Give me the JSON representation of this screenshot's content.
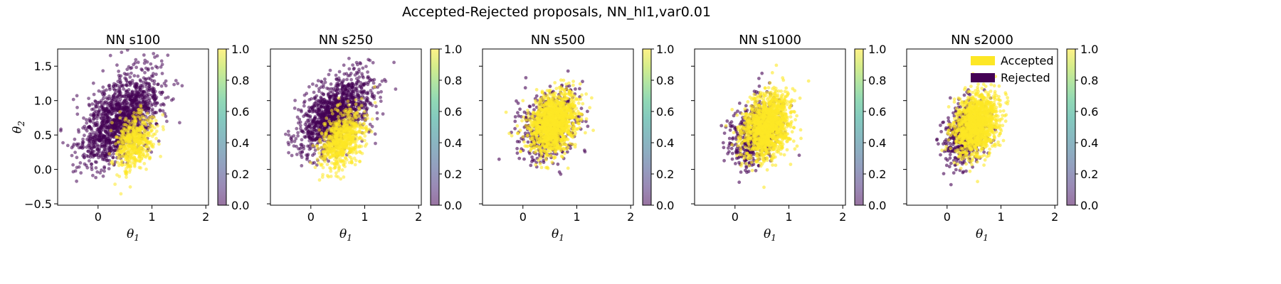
{
  "figure_title": "Accepted-Rejected proposals, NN_hl1,var0.01",
  "colors": {
    "accepted": "#fde725",
    "rejected": "#440154",
    "viridis": [
      "#440154",
      "#482878",
      "#3e4989",
      "#31688e",
      "#26828e",
      "#1f9e89",
      "#35b779",
      "#6ece58",
      "#b5de2b",
      "#fde725"
    ]
  },
  "chart_data": [
    {
      "type": "scatter",
      "title": "NN s100",
      "xlabel": "θ1",
      "ylabel": "θ2",
      "xlim": [
        -0.75,
        2.05
      ],
      "ylim": [
        -0.52,
        1.75
      ],
      "xticks": [
        "0",
        "1",
        "2"
      ],
      "yticks": [
        "−0.5",
        "0.0",
        "0.5",
        "1.0",
        "1.5"
      ],
      "colorbar": {
        "range": [
          0.0,
          1.0
        ],
        "ticks": [
          "0.0",
          "0.2",
          "0.4",
          "0.6",
          "0.8",
          "1.0"
        ]
      },
      "series": [
        {
          "name": "Rejected",
          "center": [
            0.4,
            0.72
          ],
          "spread": [
            0.38,
            0.33
          ],
          "correlation": 0.55,
          "count": 1400
        },
        {
          "name": "Accepted",
          "center": [
            0.68,
            0.4
          ],
          "spread": [
            0.17,
            0.2
          ],
          "correlation": 0.3,
          "count": 500
        }
      ],
      "marker_alpha": 0.55
    },
    {
      "type": "scatter",
      "title": "NN s250",
      "xlabel": "θ1",
      "ylabel": "",
      "xlim": [
        -0.75,
        2.05
      ],
      "ylim": [
        -0.52,
        1.75
      ],
      "xticks": [
        "0",
        "1",
        "2"
      ],
      "yticks": [],
      "colorbar": {
        "range": [
          0.0,
          1.0
        ],
        "ticks": [
          "0.0",
          "0.2",
          "0.4",
          "0.6",
          "0.8",
          "1.0"
        ]
      },
      "series": [
        {
          "name": "Rejected",
          "center": [
            0.45,
            0.8
          ],
          "spread": [
            0.33,
            0.28
          ],
          "correlation": 0.5,
          "count": 1300
        },
        {
          "name": "Accepted",
          "center": [
            0.6,
            0.45
          ],
          "spread": [
            0.2,
            0.22
          ],
          "correlation": 0.35,
          "count": 700
        }
      ],
      "marker_alpha": 0.55
    },
    {
      "type": "scatter",
      "title": "NN s500",
      "xlabel": "θ1",
      "ylabel": "",
      "xlim": [
        -0.75,
        2.05
      ],
      "ylim": [
        -0.52,
        1.75
      ],
      "xticks": [
        "0",
        "1",
        "2"
      ],
      "yticks": [],
      "colorbar": {
        "range": [
          0.0,
          1.0
        ],
        "ticks": [
          "0.0",
          "0.2",
          "0.4",
          "0.6",
          "0.8",
          "1.0"
        ]
      },
      "series": [
        {
          "name": "Rejected",
          "center": [
            0.45,
            0.62
          ],
          "spread": [
            0.28,
            0.26
          ],
          "correlation": 0.3,
          "count": 500
        },
        {
          "name": "Accepted",
          "center": [
            0.55,
            0.66
          ],
          "spread": [
            0.22,
            0.22
          ],
          "correlation": 0.25,
          "count": 1300
        }
      ],
      "marker_alpha": 0.6
    },
    {
      "type": "scatter",
      "title": "NN s1000",
      "xlabel": "θ1",
      "ylabel": "",
      "xlim": [
        -0.75,
        2.05
      ],
      "ylim": [
        -0.52,
        1.75
      ],
      "xticks": [
        "0",
        "1",
        "2"
      ],
      "yticks": [],
      "colorbar": {
        "range": [
          0.0,
          1.0
        ],
        "ticks": [
          "0.0",
          "0.2",
          "0.4",
          "0.6",
          "0.8",
          "1.0"
        ]
      },
      "series": [
        {
          "name": "Rejected",
          "center": [
            0.4,
            0.55
          ],
          "spread": [
            0.22,
            0.24
          ],
          "correlation": 0.25,
          "count": 550
        },
        {
          "name": "Accepted",
          "center": [
            0.58,
            0.62
          ],
          "spread": [
            0.22,
            0.24
          ],
          "correlation": 0.25,
          "count": 1300
        }
      ],
      "marker_alpha": 0.6
    },
    {
      "type": "scatter",
      "title": "NN s2000",
      "xlabel": "θ1",
      "ylabel": "",
      "xlim": [
        -0.75,
        2.05
      ],
      "ylim": [
        -0.52,
        1.75
      ],
      "xticks": [
        "0",
        "1",
        "2"
      ],
      "yticks": [],
      "colorbar": {
        "range": [
          0.0,
          1.0
        ],
        "ticks": [
          "0.0",
          "0.2",
          "0.4",
          "0.6",
          "0.8",
          "1.0"
        ]
      },
      "series": [
        {
          "name": "Rejected",
          "center": [
            0.35,
            0.52
          ],
          "spread": [
            0.2,
            0.22
          ],
          "correlation": 0.2,
          "count": 500
        },
        {
          "name": "Accepted",
          "center": [
            0.55,
            0.66
          ],
          "spread": [
            0.2,
            0.22
          ],
          "correlation": 0.25,
          "count": 1300
        }
      ],
      "legend": {
        "position": "upper right",
        "entries": [
          "Accepted",
          "Rejected"
        ]
      },
      "marker_alpha": 0.6
    }
  ]
}
